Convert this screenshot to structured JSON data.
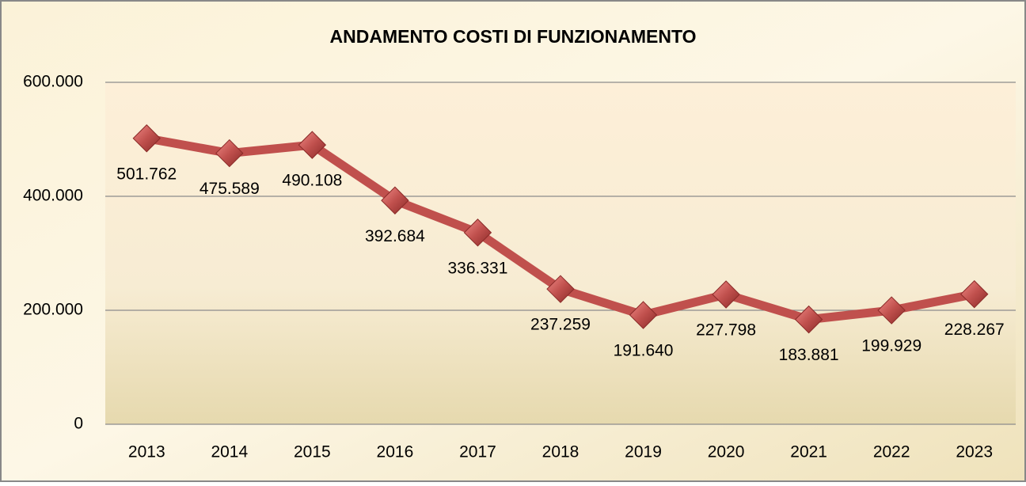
{
  "chart_data": {
    "type": "line",
    "title": "ANDAMENTO COSTI DI FUNZIONAMENTO",
    "categories": [
      "2013",
      "2014",
      "2015",
      "2016",
      "2017",
      "2018",
      "2019",
      "2020",
      "2021",
      "2022",
      "2023"
    ],
    "series": [
      {
        "color": "#c0504d",
        "values": [
          501762,
          475589,
          490108,
          392684,
          336331,
          237259,
          191640,
          227798,
          183881,
          199929,
          228267
        ],
        "value_labels": [
          "501.762",
          "475.589",
          "490.108",
          "392.684",
          "336.331",
          "237.259",
          "191.640",
          "227.798",
          "183.881",
          "199.929",
          "228.267"
        ]
      }
    ],
    "ylim": [
      0,
      600000
    ],
    "yticks": [
      0,
      {
        "value": 200000,
        "label": "200.000"
      },
      {
        "value": 400000,
        "label": "400.000"
      },
      {
        "value": 600000,
        "label": "600.000"
      }
    ],
    "grid": true
  }
}
